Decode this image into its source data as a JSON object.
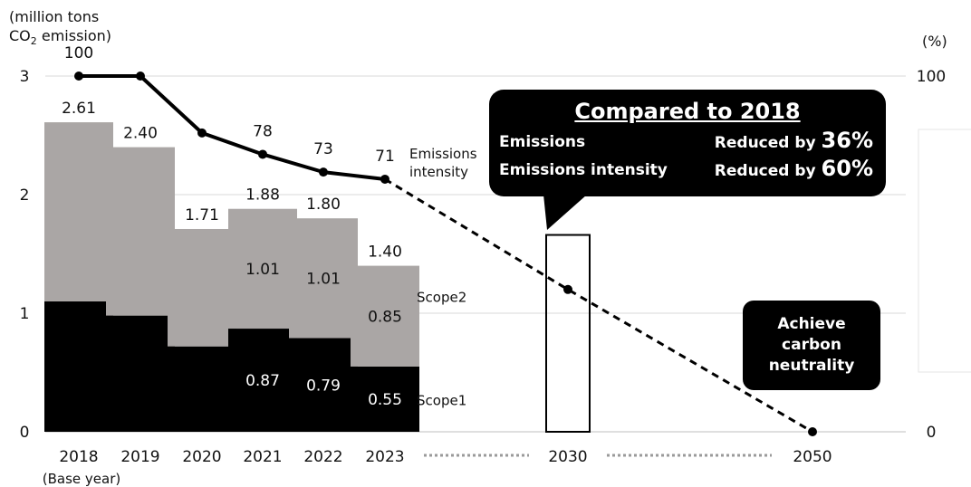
{
  "chart_data": {
    "type": "bar",
    "y_axis_label": [
      "(million tons",
      "CO2 emission)"
    ],
    "y_axis_label_parts": {
      "line1": "(million tons",
      "line2_pre": "CO",
      "line2_sub": "2",
      "line2_post": " emission)"
    },
    "y2_axis_label": "(%)",
    "ylim": [
      0,
      3
    ],
    "y_ticks": [
      "0",
      "1",
      "2",
      "3"
    ],
    "y2lim": [
      0,
      100
    ],
    "y2_ticks": [
      "0",
      "100"
    ],
    "categories": [
      "2018",
      "2019",
      "2020",
      "2021",
      "2022",
      "2023",
      "2030",
      "2050"
    ],
    "base_year_note": "(Base year)",
    "series": [
      {
        "name": "Scope1",
        "values": [
          1.1,
          0.98,
          0.72,
          0.87,
          0.79,
          0.55,
          null,
          null
        ],
        "labels": [
          "",
          "",
          "",
          "0.87",
          "0.79",
          "0.55",
          "",
          ""
        ]
      },
      {
        "name": "Scope2",
        "values": [
          1.51,
          1.42,
          0.99,
          1.01,
          1.01,
          0.85,
          null,
          null
        ],
        "labels": [
          "",
          "",
          "",
          "1.01",
          "1.01",
          "0.85",
          "",
          ""
        ]
      }
    ],
    "totals": [
      "2.61",
      "2.40",
      "1.71",
      "1.88",
      "1.80",
      "1.40",
      "",
      ""
    ],
    "total_values": [
      2.61,
      2.4,
      1.71,
      1.88,
      1.8,
      1.4
    ],
    "target_2030_outline": 1.66,
    "intensity": {
      "name_lines": [
        "Emissions",
        "intensity"
      ],
      "values": [
        100,
        100,
        84,
        78,
        73,
        71
      ],
      "labels": [
        "100",
        "",
        "",
        "78",
        "73",
        "71"
      ],
      "projection": [
        {
          "x": "2023",
          "y": 71
        },
        {
          "x": "2030",
          "y": 40
        },
        {
          "x": "2050",
          "y": 0
        }
      ]
    },
    "callout": {
      "title": "Compared to 2018",
      "rows": [
        {
          "label": "Emissions",
          "prefix": "Reduced by ",
          "value": "36%"
        },
        {
          "label": "Emissions intensity",
          "prefix": "Reduced by ",
          "value": "60%"
        }
      ]
    },
    "goal_box": "Achieve carbon neutrality",
    "colors": {
      "scope1": "#000000",
      "scope2": "#aaa6a5",
      "grid": "#d9d9d9",
      "line": "#000000"
    }
  }
}
